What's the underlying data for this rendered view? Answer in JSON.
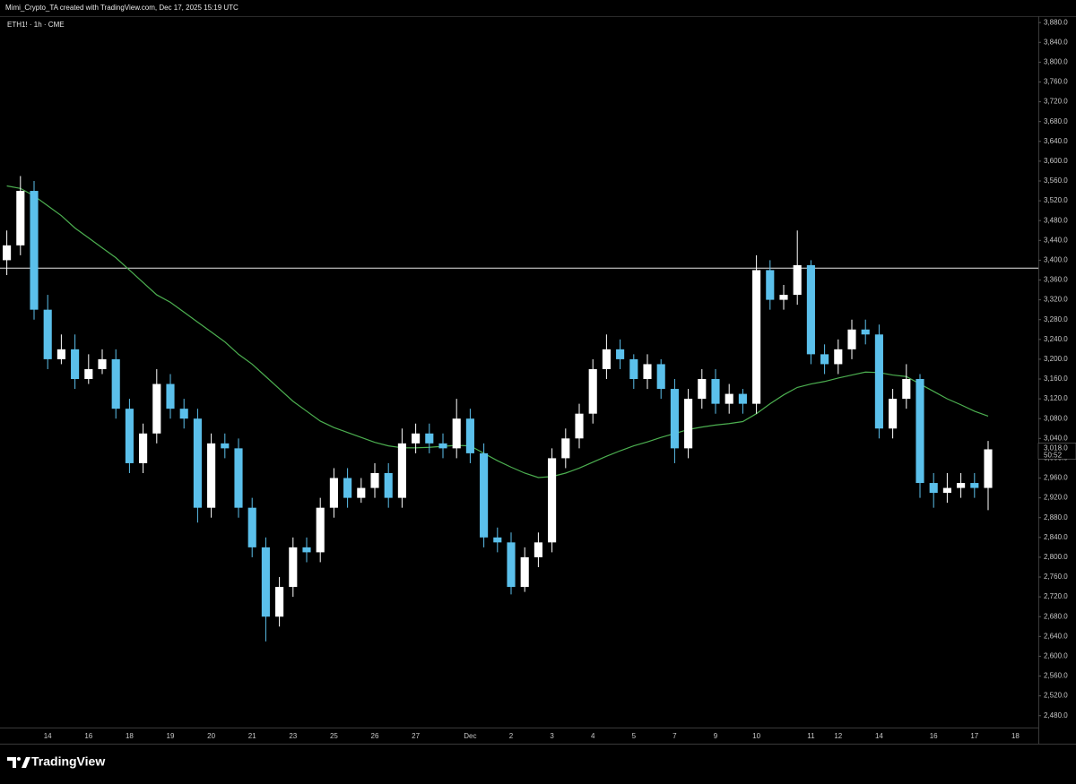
{
  "header": {
    "text": "Mimi_Crypto_TA created with TradingView.com, Dec 17, 2025 15:19 UTC"
  },
  "footer": {
    "brand": "TradingView"
  },
  "chart_data": {
    "type": "candlestick",
    "title": "ETH1! · 1h · CME",
    "categories": [
      null,
      null,
      null,
      "14",
      null,
      null,
      "16",
      null,
      null,
      "18",
      null,
      null,
      "19",
      null,
      null,
      "20",
      null,
      null,
      "21",
      null,
      null,
      "23",
      null,
      null,
      "25",
      null,
      null,
      "26",
      null,
      null,
      "27",
      null,
      null,
      null,
      "Dec",
      null,
      null,
      "2",
      null,
      null,
      "3",
      null,
      null,
      "4",
      null,
      null,
      "5",
      null,
      null,
      "7",
      null,
      null,
      "9",
      null,
      null,
      "10",
      null,
      null,
      null,
      "11",
      null,
      "12",
      null,
      null,
      "14",
      null,
      null,
      null,
      "16",
      null,
      null,
      "17",
      null,
      null,
      "18"
    ],
    "open": [
      3400,
      3430,
      3540,
      3300,
      3200,
      3220,
      3160,
      3180,
      3200,
      3100,
      2990,
      3050,
      3150,
      3100,
      3080,
      2900,
      3030,
      3020,
      2900,
      2820,
      2680,
      2740,
      2820,
      2810,
      2900,
      2960,
      2920,
      2940,
      2970,
      2920,
      3030,
      3050,
      3030,
      3020,
      3080,
      3010,
      2840,
      2830,
      2740,
      2800,
      2830,
      3000,
      3040,
      3090,
      3180,
      3220,
      3200,
      3160,
      3190,
      3140,
      3020,
      3120,
      3160,
      3110,
      3130,
      3110,
      3380,
      3320,
      3330,
      3390,
      3210,
      3190,
      3220,
      3260,
      3250,
      3060,
      3120,
      3160,
      2950,
      2930,
      2940,
      2950,
      2940,
      null,
      null
    ],
    "high": [
      3460,
      3570,
      3560,
      3330,
      3250,
      3250,
      3210,
      3220,
      3220,
      3120,
      3070,
      3180,
      3170,
      3120,
      3100,
      3050,
      3050,
      3040,
      2920,
      2840,
      2760,
      2840,
      2840,
      2920,
      2980,
      2980,
      2960,
      2990,
      2990,
      3060,
      3070,
      3070,
      3050,
      3120,
      3100,
      3030,
      2860,
      2850,
      2820,
      2850,
      3020,
      3060,
      3110,
      3200,
      3250,
      3240,
      3210,
      3210,
      3200,
      3160,
      3140,
      3180,
      3180,
      3150,
      3140,
      3410,
      3400,
      3350,
      3460,
      3400,
      3230,
      3240,
      3280,
      3280,
      3270,
      3140,
      3190,
      3170,
      2970,
      2970,
      2970,
      2970,
      3035,
      null,
      null
    ],
    "low": [
      3370,
      3410,
      3280,
      3180,
      3190,
      3140,
      3150,
      3170,
      3080,
      2970,
      2970,
      3030,
      3080,
      3060,
      2870,
      2880,
      3000,
      2880,
      2800,
      2630,
      2660,
      2720,
      2790,
      2790,
      2880,
      2900,
      2910,
      2920,
      2900,
      2900,
      3010,
      3010,
      3000,
      3000,
      2990,
      2820,
      2810,
      2725,
      2730,
      2780,
      2810,
      2980,
      3020,
      3070,
      3160,
      3180,
      3140,
      3140,
      3120,
      2990,
      3000,
      3100,
      3090,
      3090,
      3090,
      3090,
      3300,
      3300,
      3310,
      3190,
      3170,
      3170,
      3200,
      3230,
      3040,
      3040,
      3100,
      2920,
      2900,
      2910,
      2920,
      2920,
      2895,
      null,
      null
    ],
    "close": [
      3430,
      3540,
      3300,
      3200,
      3220,
      3160,
      3180,
      3200,
      3100,
      2990,
      3050,
      3150,
      3100,
      3080,
      2900,
      3030,
      3020,
      2900,
      2820,
      2680,
      2740,
      2820,
      2810,
      2900,
      2960,
      2920,
      2940,
      2970,
      2920,
      3030,
      3050,
      3030,
      3020,
      3080,
      3010,
      2840,
      2830,
      2740,
      2800,
      2830,
      3000,
      3040,
      3090,
      3180,
      3220,
      3200,
      3160,
      3190,
      3140,
      3020,
      3120,
      3160,
      3110,
      3130,
      3110,
      3380,
      3320,
      3330,
      3390,
      3210,
      3190,
      3220,
      3260,
      3250,
      3060,
      3120,
      3160,
      2950,
      2930,
      2940,
      2950,
      2940,
      3018,
      null,
      null
    ],
    "up_color": "#ffffff",
    "down_color": "#5bc0eb",
    "overlays": [
      {
        "type": "line",
        "color": "#4caf50",
        "values": [
          3550,
          3545,
          3530,
          3510,
          3490,
          3465,
          3445,
          3425,
          3405,
          3380,
          3355,
          3330,
          3315,
          3295,
          3275,
          3255,
          3235,
          3210,
          3190,
          3165,
          3140,
          3115,
          3095,
          3075,
          3062,
          3052,
          3042,
          3032,
          3025,
          3021,
          3021,
          3022,
          3024,
          3026,
          3025,
          3010,
          2995,
          2982,
          2970,
          2961,
          2963,
          2970,
          2980,
          2992,
          3004,
          3015,
          3025,
          3033,
          3042,
          3050,
          3058,
          3063,
          3067,
          3070,
          3074,
          3090,
          3110,
          3128,
          3143,
          3150,
          3155,
          3162,
          3168,
          3174,
          3173,
          3168,
          3165,
          3150,
          3135,
          3120,
          3108,
          3095,
          3085,
          null,
          null
        ]
      }
    ],
    "hline": {
      "value": 3384,
      "color": "#e6e6e6"
    },
    "price_tag": {
      "value": 3018,
      "label": "3,018.0",
      "timer": "50:52"
    },
    "ylim": [
      2456,
      3893
    ],
    "yticks": [
      {
        "value": 2480,
        "label": "2,480.0"
      },
      {
        "value": 2520,
        "label": "2,520.0"
      },
      {
        "value": 2560,
        "label": "2,560.0"
      },
      {
        "value": 2600,
        "label": "2,600.0"
      },
      {
        "value": 2640,
        "label": "2,640.0"
      },
      {
        "value": 2680,
        "label": "2,680.0"
      },
      {
        "value": 2720,
        "label": "2,720.0"
      },
      {
        "value": 2760,
        "label": "2,760.0"
      },
      {
        "value": 2800,
        "label": "2,800.0"
      },
      {
        "value": 2840,
        "label": "2,840.0"
      },
      {
        "value": 2880,
        "label": "2,880.0"
      },
      {
        "value": 2920,
        "label": "2,920.0"
      },
      {
        "value": 2960,
        "label": "2,960.0"
      },
      {
        "value": 3000,
        "label": "3,000.0"
      },
      {
        "value": 3040,
        "label": "3,040.0"
      },
      {
        "value": 3080,
        "label": "3,080.0"
      },
      {
        "value": 3120,
        "label": "3,120.0"
      },
      {
        "value": 3160,
        "label": "3,160.0"
      },
      {
        "value": 3200,
        "label": "3,200.0"
      },
      {
        "value": 3240,
        "label": "3,240.0"
      },
      {
        "value": 3280,
        "label": "3,280.0"
      },
      {
        "value": 3320,
        "label": "3,320.0"
      },
      {
        "value": 3360,
        "label": "3,360.0"
      },
      {
        "value": 3400,
        "label": "3,400.0"
      },
      {
        "value": 3440,
        "label": "3,440.0"
      },
      {
        "value": 3480,
        "label": "3,480.0"
      },
      {
        "value": 3520,
        "label": "3,520.0"
      },
      {
        "value": 3560,
        "label": "3,560.0"
      },
      {
        "value": 3600,
        "label": "3,600.0"
      },
      {
        "value": 3640,
        "label": "3,640.0"
      },
      {
        "value": 3680,
        "label": "3,680.0"
      },
      {
        "value": 3720,
        "label": "3,720.0"
      },
      {
        "value": 3760,
        "label": "3,760.0"
      },
      {
        "value": 3800,
        "label": "3,800.0"
      },
      {
        "value": 3840,
        "label": "3,840.0"
      },
      {
        "value": 3880,
        "label": "3,880.0"
      }
    ]
  }
}
